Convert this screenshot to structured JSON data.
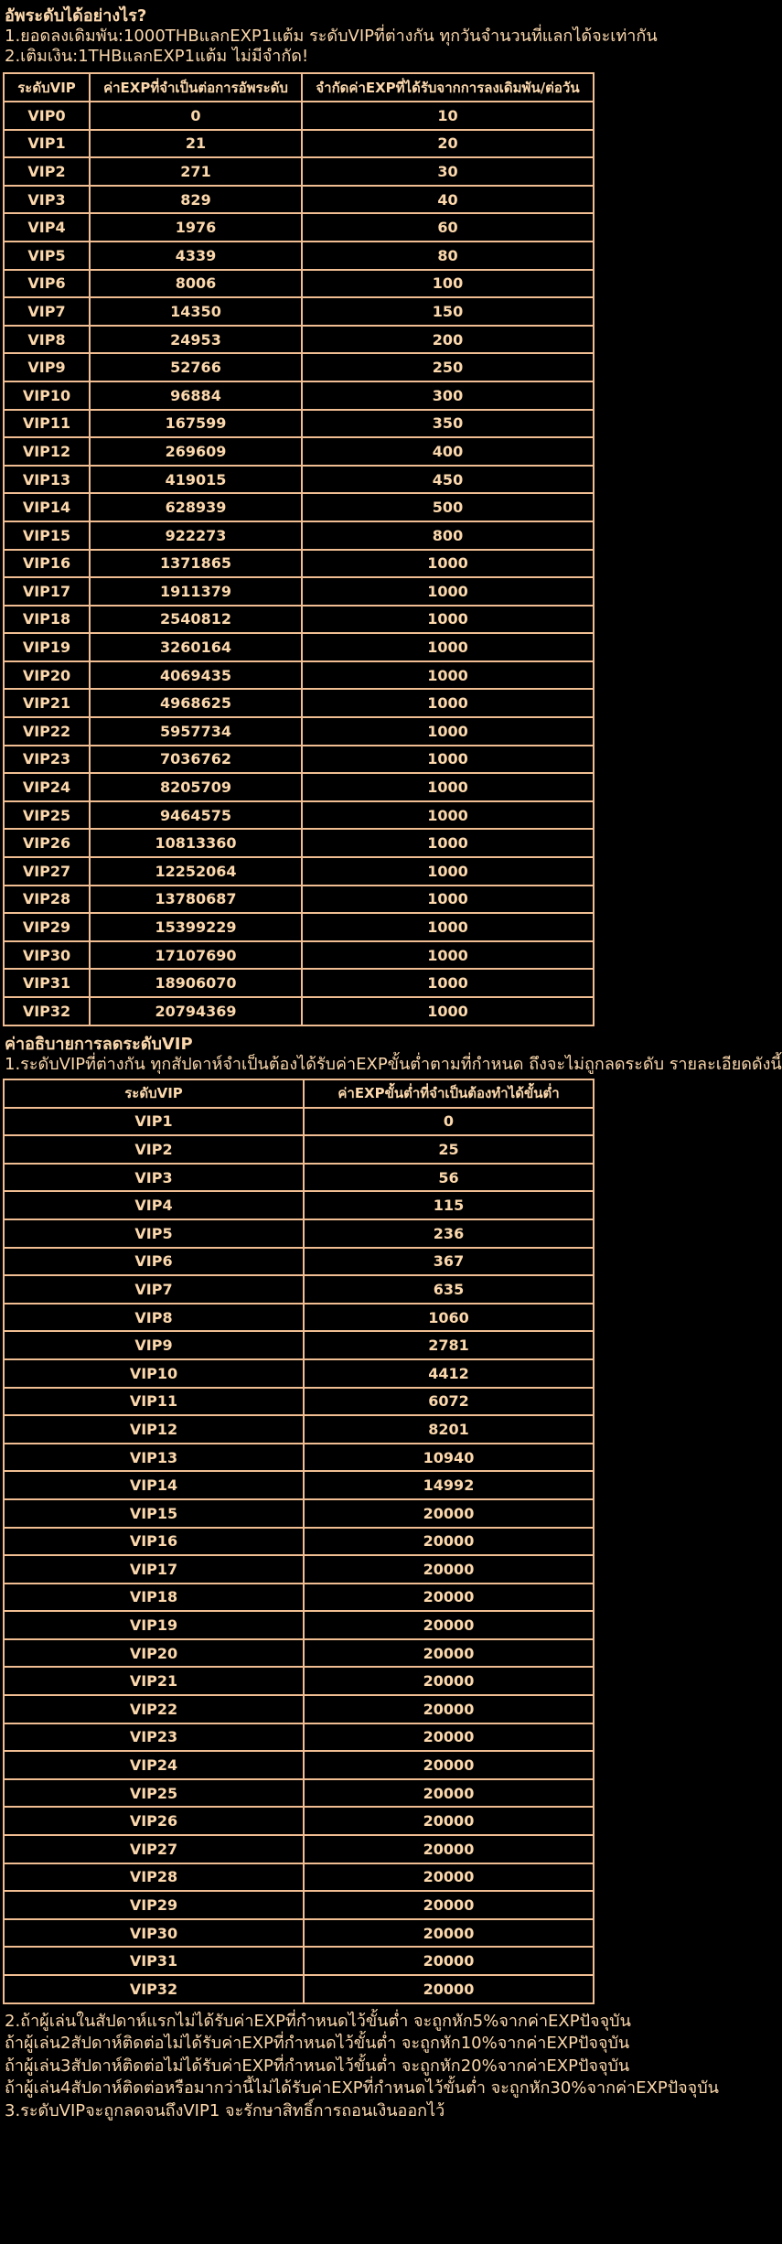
{
  "colors": {
    "background": "#000000",
    "text": "#FCD8AC",
    "border": "#F0BE92"
  },
  "intro": {
    "title": "อัพระดับได้อย่างไร?",
    "lines": [
      "1.ยอดลงเดิมพัน:1000THBแลกEXP1แต้ม ระดับVIPที่ต่างกัน ทุกวันจำนวนที่แลกได้จะเท่ากัน",
      "2.เติมเงิน:1THBแลกEXP1แต้ม ไม่มีจำกัด!"
    ]
  },
  "upgrade_table": {
    "headers": [
      "ระดับVIP",
      "ค่าEXPที่จำเป็นต่อการอัพระดับ",
      "จำกัดค่าEXPที่ได้รับจากการลงเดิมพัน/ต่อวัน"
    ],
    "rows": [
      [
        "VIP0",
        "0",
        "10"
      ],
      [
        "VIP1",
        "21",
        "20"
      ],
      [
        "VIP2",
        "271",
        "30"
      ],
      [
        "VIP3",
        "829",
        "40"
      ],
      [
        "VIP4",
        "1976",
        "60"
      ],
      [
        "VIP5",
        "4339",
        "80"
      ],
      [
        "VIP6",
        "8006",
        "100"
      ],
      [
        "VIP7",
        "14350",
        "150"
      ],
      [
        "VIP8",
        "24953",
        "200"
      ],
      [
        "VIP9",
        "52766",
        "250"
      ],
      [
        "VIP10",
        "96884",
        "300"
      ],
      [
        "VIP11",
        "167599",
        "350"
      ],
      [
        "VIP12",
        "269609",
        "400"
      ],
      [
        "VIP13",
        "419015",
        "450"
      ],
      [
        "VIP14",
        "628939",
        "500"
      ],
      [
        "VIP15",
        "922273",
        "800"
      ],
      [
        "VIP16",
        "1371865",
        "1000"
      ],
      [
        "VIP17",
        "1911379",
        "1000"
      ],
      [
        "VIP18",
        "2540812",
        "1000"
      ],
      [
        "VIP19",
        "3260164",
        "1000"
      ],
      [
        "VIP20",
        "4069435",
        "1000"
      ],
      [
        "VIP21",
        "4968625",
        "1000"
      ],
      [
        "VIP22",
        "5957734",
        "1000"
      ],
      [
        "VIP23",
        "7036762",
        "1000"
      ],
      [
        "VIP24",
        "8205709",
        "1000"
      ],
      [
        "VIP25",
        "9464575",
        "1000"
      ],
      [
        "VIP26",
        "10813360",
        "1000"
      ],
      [
        "VIP27",
        "12252064",
        "1000"
      ],
      [
        "VIP28",
        "13780687",
        "1000"
      ],
      [
        "VIP29",
        "15399229",
        "1000"
      ],
      [
        "VIP30",
        "17107690",
        "1000"
      ],
      [
        "VIP31",
        "18906070",
        "1000"
      ],
      [
        "VIP32",
        "20794369",
        "1000"
      ]
    ]
  },
  "downgrade_section": {
    "title": "ค่าอธิบายการลดระดับVIP",
    "intro": "1.ระดับVIPที่ต่างกัน ทุกสัปดาห์จำเป็นต้องได้รับค่าEXPขั้นต่ำตามที่กำหนด ถึงจะไม่ถูกลดระดับ รายละเอียดดังนี้",
    "table": {
      "headers": [
        "ระดับVIP",
        "ค่าEXPขั้นต่ำที่จำเป็นต้องทำได้ขั้นต่ำ"
      ],
      "rows": [
        [
          "VIP1",
          "0"
        ],
        [
          "VIP2",
          "25"
        ],
        [
          "VIP3",
          "56"
        ],
        [
          "VIP4",
          "115"
        ],
        [
          "VIP5",
          "236"
        ],
        [
          "VIP6",
          "367"
        ],
        [
          "VIP7",
          "635"
        ],
        [
          "VIP8",
          "1060"
        ],
        [
          "VIP9",
          "2781"
        ],
        [
          "VIP10",
          "4412"
        ],
        [
          "VIP11",
          "6072"
        ],
        [
          "VIP12",
          "8201"
        ],
        [
          "VIP13",
          "10940"
        ],
        [
          "VIP14",
          "14992"
        ],
        [
          "VIP15",
          "20000"
        ],
        [
          "VIP16",
          "20000"
        ],
        [
          "VIP17",
          "20000"
        ],
        [
          "VIP18",
          "20000"
        ],
        [
          "VIP19",
          "20000"
        ],
        [
          "VIP20",
          "20000"
        ],
        [
          "VIP21",
          "20000"
        ],
        [
          "VIP22",
          "20000"
        ],
        [
          "VIP23",
          "20000"
        ],
        [
          "VIP24",
          "20000"
        ],
        [
          "VIP25",
          "20000"
        ],
        [
          "VIP26",
          "20000"
        ],
        [
          "VIP27",
          "20000"
        ],
        [
          "VIP28",
          "20000"
        ],
        [
          "VIP29",
          "20000"
        ],
        [
          "VIP30",
          "20000"
        ],
        [
          "VIP31",
          "20000"
        ],
        [
          "VIP32",
          "20000"
        ]
      ]
    },
    "notes": [
      "2.ถ้าผู้เล่นในสัปดาห์แรกไม่ได้รับค่าEXPที่กำหนดไว้ขั้นต่ำ จะถูกหัก5%จากค่าEXPปัจจุบัน",
      "ถ้าผู้เล่น2สัปดาห์ติดต่อไม่ได้รับค่าEXPที่กำหนดไว้ขั้นต่ำ จะถูกหัก10%จากค่าEXPปัจจุบัน",
      "ถ้าผู้เล่น3สัปดาห์ติดต่อไม่ได้รับค่าEXPที่กำหนดไว้ขั้นต่ำ จะถูกหัก20%จากค่าEXPปัจจุบัน",
      "ถ้าผู้เล่น4สัปดาห์ติดต่อหรือมากว่านี้ไม่ได้รับค่าEXPที่กำหนดไว้ขั้นต่ำ จะถูกหัก30%จากค่าEXPปัจจุบัน",
      "3.ระดับVIPจะถูกลดจนถึงVIP1 จะรักษาสิทธิ์การถอนเงินออกไว้"
    ]
  }
}
